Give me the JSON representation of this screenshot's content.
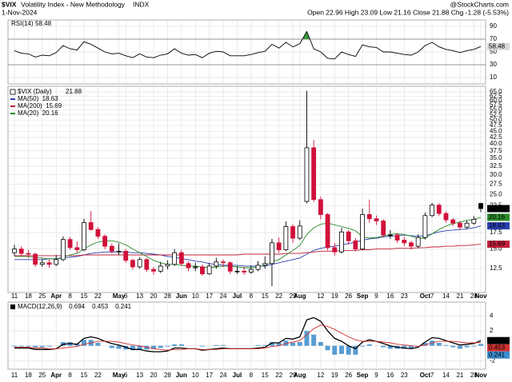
{
  "header": {
    "symbol": "$VIX",
    "name": "Volatility Index - New Methodology",
    "exchange": "INDX",
    "date": "1-Nov-2024",
    "quote": "Open 22.96 High 23.09 Low 21.16 Close 21.88 Chg -1.28 (-5.53%)",
    "source": "@StockCharts.com"
  },
  "chart_data": [
    {
      "type": "line",
      "series": [
        {
          "name": "RSI(14)",
          "color": "#000000",
          "values": [
            52,
            48,
            47,
            42,
            45,
            44,
            49,
            60,
            55,
            53,
            66,
            62,
            56,
            50,
            47,
            48,
            44,
            41,
            47,
            42,
            41,
            45,
            47,
            55,
            48,
            45,
            46,
            41,
            48,
            51,
            50,
            44,
            44,
            44,
            46,
            49,
            51,
            62,
            56,
            65,
            58,
            63,
            82,
            55,
            50,
            40,
            39,
            50,
            46,
            43,
            61,
            58,
            57,
            50,
            50,
            48,
            46,
            45,
            50,
            60,
            65,
            58,
            54,
            52,
            49,
            52,
            54,
            58.48
          ]
        }
      ],
      "ylim": [
        0,
        100
      ],
      "yticks": [
        10,
        30,
        50,
        70,
        90
      ],
      "reference_lines": [
        70,
        30
      ],
      "overbought_color": "#3a9a3a",
      "grid": true
    },
    {
      "type": "candlestick",
      "name": "$VIX (Daily)",
      "log_scale": true,
      "up_color": "#000000",
      "down_color": "#d0103a",
      "categories": [
        "11",
        null,
        "18",
        null,
        "25",
        null,
        "Apr",
        null,
        "8",
        null,
        "15",
        null,
        "22",
        null,
        null,
        "May",
        "6",
        null,
        "13",
        null,
        "20",
        null,
        "28",
        null,
        "Jun",
        null,
        "10",
        null,
        "17",
        null,
        "24",
        null,
        "Jul",
        null,
        "8",
        null,
        "15",
        null,
        "22",
        null,
        "29",
        "Aug",
        null,
        null,
        "12",
        null,
        "19",
        null,
        "26",
        null,
        "Sep",
        null,
        "9",
        null,
        "16",
        null,
        "23",
        null,
        null,
        "Oct",
        "7",
        null,
        "14",
        null,
        "21",
        null,
        "28",
        "Nov"
      ],
      "open": [
        14.5,
        15.0,
        14.4,
        14.3,
        13.0,
        13.2,
        13.0,
        13.6,
        16.4,
        15.2,
        14.9,
        19.2,
        18.0,
        16.9,
        15.4,
        14.7,
        14.7,
        13.5,
        12.7,
        13.6,
        12.4,
        12.2,
        12.8,
        13.0,
        14.5,
        13.1,
        12.6,
        12.7,
        11.9,
        12.8,
        13.3,
        13.2,
        12.2,
        12.2,
        12.1,
        12.4,
        12.9,
        13.1,
        15.9,
        14.9,
        18.5,
        16.6,
        23.4,
        38.6,
        23.8,
        20.7,
        15.2,
        14.6,
        17.6,
        16.2,
        15.0,
        20.7,
        19.9,
        19.5,
        17.1,
        17.1,
        16.3,
        15.9,
        15.4,
        16.7,
        20.5,
        22.6,
        20.9,
        19.7,
        19.1,
        18.4,
        19.1,
        22.96
      ],
      "high": [
        15.6,
        15.4,
        14.9,
        14.5,
        13.7,
        13.6,
        14.2,
        16.9,
        16.8,
        16.1,
        19.9,
        21.4,
        18.4,
        17.2,
        15.8,
        15.8,
        15.0,
        13.7,
        13.9,
        13.8,
        12.7,
        13.3,
        13.5,
        15.0,
        14.9,
        13.4,
        13.2,
        13.0,
        13.2,
        13.8,
        13.6,
        13.4,
        12.8,
        12.7,
        12.9,
        13.4,
        14.0,
        16.5,
        16.7,
        19.4,
        18.9,
        19.6,
        65.7,
        41.5,
        24.5,
        21.0,
        15.9,
        18.3,
        17.9,
        16.6,
        21.9,
        23.8,
        20.5,
        19.8,
        17.9,
        17.4,
        16.8,
        16.2,
        17.2,
        21.1,
        23.1,
        23.0,
        21.3,
        20.0,
        19.5,
        19.6,
        20.4,
        23.09
      ],
      "low": [
        14.1,
        14.0,
        13.8,
        12.7,
        12.7,
        12.6,
        12.8,
        13.4,
        14.9,
        14.5,
        14.7,
        17.8,
        16.5,
        15.0,
        14.4,
        14.2,
        13.2,
        12.4,
        12.5,
        12.1,
        11.8,
        12.0,
        12.4,
        12.8,
        12.8,
        12.2,
        12.2,
        11.7,
        11.8,
        12.5,
        12.7,
        11.9,
        11.9,
        11.8,
        11.9,
        12.2,
        12.5,
        10.6,
        14.5,
        14.7,
        15.9,
        16.3,
        23.0,
        23.3,
        19.8,
        14.8,
        14.1,
        14.4,
        15.6,
        14.7,
        14.9,
        19.2,
        18.8,
        16.7,
        16.5,
        15.9,
        15.4,
        14.9,
        15.1,
        16.4,
        20.2,
        20.4,
        19.2,
        18.6,
        17.9,
        18.1,
        18.8,
        21.16
      ],
      "close": [
        15.0,
        14.4,
        14.3,
        13.0,
        13.2,
        13.0,
        13.6,
        16.4,
        15.2,
        14.9,
        19.2,
        18.0,
        16.9,
        15.4,
        14.7,
        14.7,
        13.5,
        12.7,
        13.6,
        12.4,
        12.2,
        12.8,
        13.0,
        14.5,
        13.1,
        12.6,
        12.7,
        11.9,
        12.8,
        13.3,
        13.2,
        12.2,
        12.2,
        12.1,
        12.4,
        12.9,
        13.1,
        15.9,
        14.9,
        18.5,
        16.6,
        18.6,
        38.6,
        23.8,
        20.7,
        15.2,
        14.6,
        17.6,
        16.2,
        15.0,
        20.7,
        19.9,
        19.5,
        17.1,
        17.1,
        16.3,
        15.9,
        15.4,
        16.7,
        20.5,
        22.6,
        20.9,
        19.7,
        19.1,
        18.4,
        19.1,
        19.8,
        21.88
      ],
      "overlays": [
        {
          "name": "MA(50)",
          "color": "#2a3fb0",
          "values": [
            13.6,
            13.6,
            13.6,
            13.6,
            13.6,
            13.7,
            13.7,
            13.8,
            13.9,
            14.0,
            14.2,
            14.4,
            14.5,
            14.6,
            14.6,
            14.6,
            14.6,
            14.5,
            14.5,
            14.4,
            14.3,
            14.2,
            14.0,
            13.9,
            13.7,
            13.6,
            13.4,
            13.3,
            13.1,
            13.0,
            12.9,
            12.9,
            12.9,
            12.8,
            12.8,
            12.8,
            12.8,
            13.0,
            13.2,
            13.4,
            13.6,
            13.8,
            14.3,
            14.8,
            15.1,
            15.3,
            15.4,
            15.6,
            15.8,
            16.0,
            16.3,
            16.5,
            16.6,
            16.8,
            16.9,
            17.0,
            17.1,
            17.0,
            16.9,
            17.0,
            17.3,
            17.6,
            17.8,
            17.9,
            18.0,
            18.1,
            18.3,
            18.63
          ]
        },
        {
          "name": "MA(200)",
          "color": "#c0203a",
          "values": [
            14.1,
            14.1,
            14.1,
            14.1,
            14.1,
            14.1,
            14.1,
            14.1,
            14.1,
            14.1,
            14.2,
            14.2,
            14.2,
            14.2,
            14.2,
            14.2,
            14.2,
            14.2,
            14.2,
            14.2,
            14.2,
            14.2,
            14.2,
            14.2,
            14.2,
            14.2,
            14.2,
            14.2,
            14.2,
            14.2,
            14.2,
            14.2,
            14.2,
            14.3,
            14.3,
            14.3,
            14.3,
            14.3,
            14.3,
            14.4,
            14.4,
            14.4,
            14.5,
            14.6,
            14.7,
            14.7,
            14.7,
            14.8,
            14.8,
            14.8,
            14.9,
            14.9,
            15.0,
            15.0,
            15.0,
            15.1,
            15.1,
            15.1,
            15.2,
            15.2,
            15.3,
            15.3,
            15.4,
            15.4,
            15.5,
            15.5,
            15.6,
            15.69
          ]
        },
        {
          "name": "MA(20)",
          "color": "#2a8a2a",
          "values": [
            14.0,
            14.0,
            14.0,
            13.9,
            13.8,
            13.7,
            13.7,
            13.9,
            14.2,
            14.4,
            15.0,
            15.6,
            16.0,
            16.2,
            16.2,
            16.0,
            15.6,
            15.0,
            14.5,
            14.0,
            13.5,
            13.2,
            13.0,
            13.0,
            12.9,
            12.8,
            12.8,
            12.7,
            12.6,
            12.7,
            12.8,
            12.8,
            12.7,
            12.6,
            12.6,
            12.7,
            12.9,
            13.3,
            13.6,
            14.2,
            14.8,
            15.5,
            17.2,
            18.3,
            18.9,
            19.1,
            18.8,
            18.5,
            18.2,
            17.8,
            16.8,
            16.6,
            16.7,
            16.9,
            17.2,
            17.3,
            17.2,
            16.9,
            16.6,
            16.6,
            17.3,
            18.0,
            18.6,
            19.0,
            19.3,
            19.6,
            19.8,
            20.16
          ]
        }
      ],
      "ylim": [
        10,
        68.5
      ],
      "yticks": [
        12.5,
        {
          "value": 15,
          "label": "15.0"
        },
        17.5,
        {
          "value": 20,
          "label": "20.0"
        },
        22.5,
        {
          "value": 25,
          "label": "25.0"
        },
        27.5,
        {
          "value": 30,
          "label": "30.0"
        },
        32.5,
        {
          "value": 35,
          "label": "35.0"
        },
        37.5,
        {
          "value": 40,
          "label": "40.0"
        },
        42.5,
        {
          "value": 45,
          "label": "45.0"
        },
        47.5,
        {
          "value": 50,
          "label": "50.0"
        },
        52.5,
        {
          "value": 55,
          "label": "55.0"
        },
        57.5,
        {
          "value": 60,
          "label": "60.0"
        },
        62.5,
        {
          "value": 65,
          "label": "65.0"
        }
      ],
      "grid": true
    },
    {
      "type": "macd",
      "label": "MACD(12,26,9)",
      "series": [
        {
          "color": "#000000",
          "style": "line",
          "values": [
            -0.3,
            -0.3,
            -0.3,
            -0.5,
            -0.5,
            -0.5,
            -0.4,
            0.2,
            0.3,
            0.2,
            1.0,
            1.2,
            1.0,
            0.6,
            0.3,
            0.1,
            -0.2,
            -0.5,
            -0.5,
            -0.7,
            -0.8,
            -0.8,
            -0.7,
            -0.3,
            -0.3,
            -0.4,
            -0.4,
            -0.6,
            -0.5,
            -0.4,
            -0.3,
            -0.4,
            -0.4,
            -0.4,
            -0.4,
            -0.3,
            -0.2,
            0.4,
            0.4,
            1.0,
            0.9,
            1.2,
            3.5,
            3.8,
            3.3,
            2.0,
            1.0,
            0.6,
            0.0,
            -0.4,
            0.5,
            0.8,
            0.6,
            0.3,
            0.0,
            -0.2,
            -0.3,
            -0.4,
            -0.2,
            0.5,
            1.1,
            1.0,
            0.7,
            0.4,
            0.1,
            0.2,
            0.3,
            0.694
          ]
        },
        {
          "color": "#d03030",
          "style": "line",
          "values": [
            -0.2,
            -0.2,
            -0.2,
            -0.3,
            -0.3,
            -0.4,
            -0.4,
            -0.3,
            -0.2,
            -0.1,
            0.2,
            0.4,
            0.6,
            0.6,
            0.6,
            0.5,
            0.3,
            0.1,
            0.0,
            -0.2,
            -0.4,
            -0.5,
            -0.6,
            -0.5,
            -0.5,
            -0.4,
            -0.4,
            -0.5,
            -0.5,
            -0.5,
            -0.4,
            -0.4,
            -0.4,
            -0.4,
            -0.4,
            -0.4,
            -0.3,
            -0.1,
            0.0,
            0.3,
            0.5,
            0.7,
            1.5,
            2.3,
            2.8,
            2.6,
            2.2,
            1.7,
            1.2,
            0.8,
            0.6,
            0.6,
            0.6,
            0.5,
            0.4,
            0.2,
            0.1,
            0.0,
            -0.1,
            0.1,
            0.4,
            0.6,
            0.6,
            0.6,
            0.5,
            0.4,
            0.4,
            0.453
          ]
        },
        {
          "color": "#3a8ccc",
          "style": "bar",
          "values": [
            -0.1,
            -0.1,
            -0.1,
            -0.2,
            -0.2,
            -0.1,
            0.0,
            0.5,
            0.5,
            0.3,
            0.8,
            0.8,
            0.4,
            0.0,
            -0.3,
            -0.4,
            -0.5,
            -0.6,
            -0.5,
            -0.5,
            -0.4,
            -0.3,
            -0.1,
            0.2,
            0.2,
            0.0,
            0.0,
            -0.1,
            0.0,
            0.1,
            0.1,
            0.0,
            0.0,
            0.0,
            0.0,
            0.1,
            0.1,
            0.5,
            0.4,
            0.7,
            0.4,
            0.5,
            2.0,
            1.5,
            0.5,
            -0.6,
            -1.2,
            -1.1,
            -1.2,
            -1.2,
            -0.1,
            0.2,
            0.0,
            -0.2,
            -0.4,
            -0.4,
            -0.4,
            -0.4,
            -0.1,
            0.4,
            0.7,
            0.4,
            0.1,
            -0.2,
            -0.4,
            -0.2,
            -0.1,
            0.241
          ]
        }
      ],
      "ylim": [
        -3.16,
        5.89
      ],
      "yticks": [
        4,
        2,
        0,
        -2
      ],
      "grid": true
    }
  ]
}
